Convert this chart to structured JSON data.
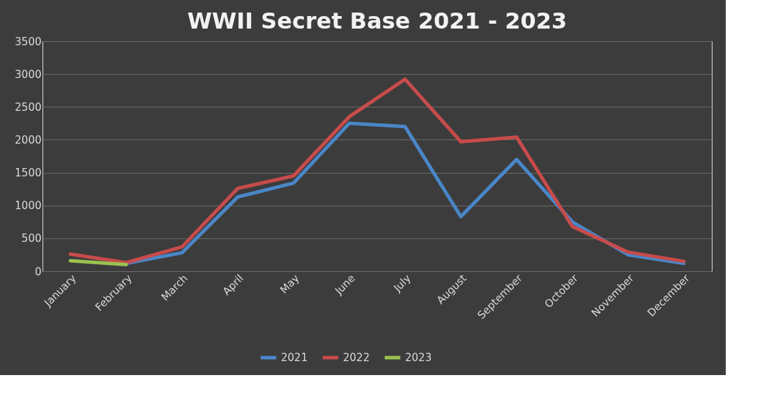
{
  "chart_data": {
    "type": "line",
    "title": "WWII Secret Base 2021 - 2023",
    "categories": [
      "January",
      "February",
      "March",
      "April",
      "May",
      "June",
      "July",
      "August",
      "September",
      "October",
      "November",
      "December"
    ],
    "series": [
      {
        "name": "2021",
        "color": "#4a86c8",
        "values": [
          null,
          120,
          280,
          1130,
          1340,
          2250,
          2200,
          830,
          1700,
          750,
          250,
          120
        ]
      },
      {
        "name": "2022",
        "color": "#c84b4b",
        "values": [
          260,
          130,
          370,
          1260,
          1450,
          2350,
          2920,
          1970,
          2040,
          680,
          290,
          150
        ]
      },
      {
        "name": "2023",
        "color": "#9bc24f",
        "values": [
          160,
          100,
          null,
          null,
          null,
          null,
          null,
          null,
          null,
          null,
          null,
          null
        ]
      }
    ],
    "ylim": [
      0,
      3500
    ],
    "yticks": [
      0,
      500,
      {
        "value": 1000,
        "label": "1000"
      },
      {
        "value": 1500,
        "label": "1500"
      },
      {
        "value": 2000,
        "label": "2000"
      },
      {
        "value": 2500,
        "label": "2500"
      },
      {
        "value": 3000,
        "label": "3000"
      },
      {
        "value": 3500,
        "label": "3500"
      }
    ],
    "grid": "y",
    "legend": "bottom",
    "marker": "none",
    "line_style": "solid"
  }
}
